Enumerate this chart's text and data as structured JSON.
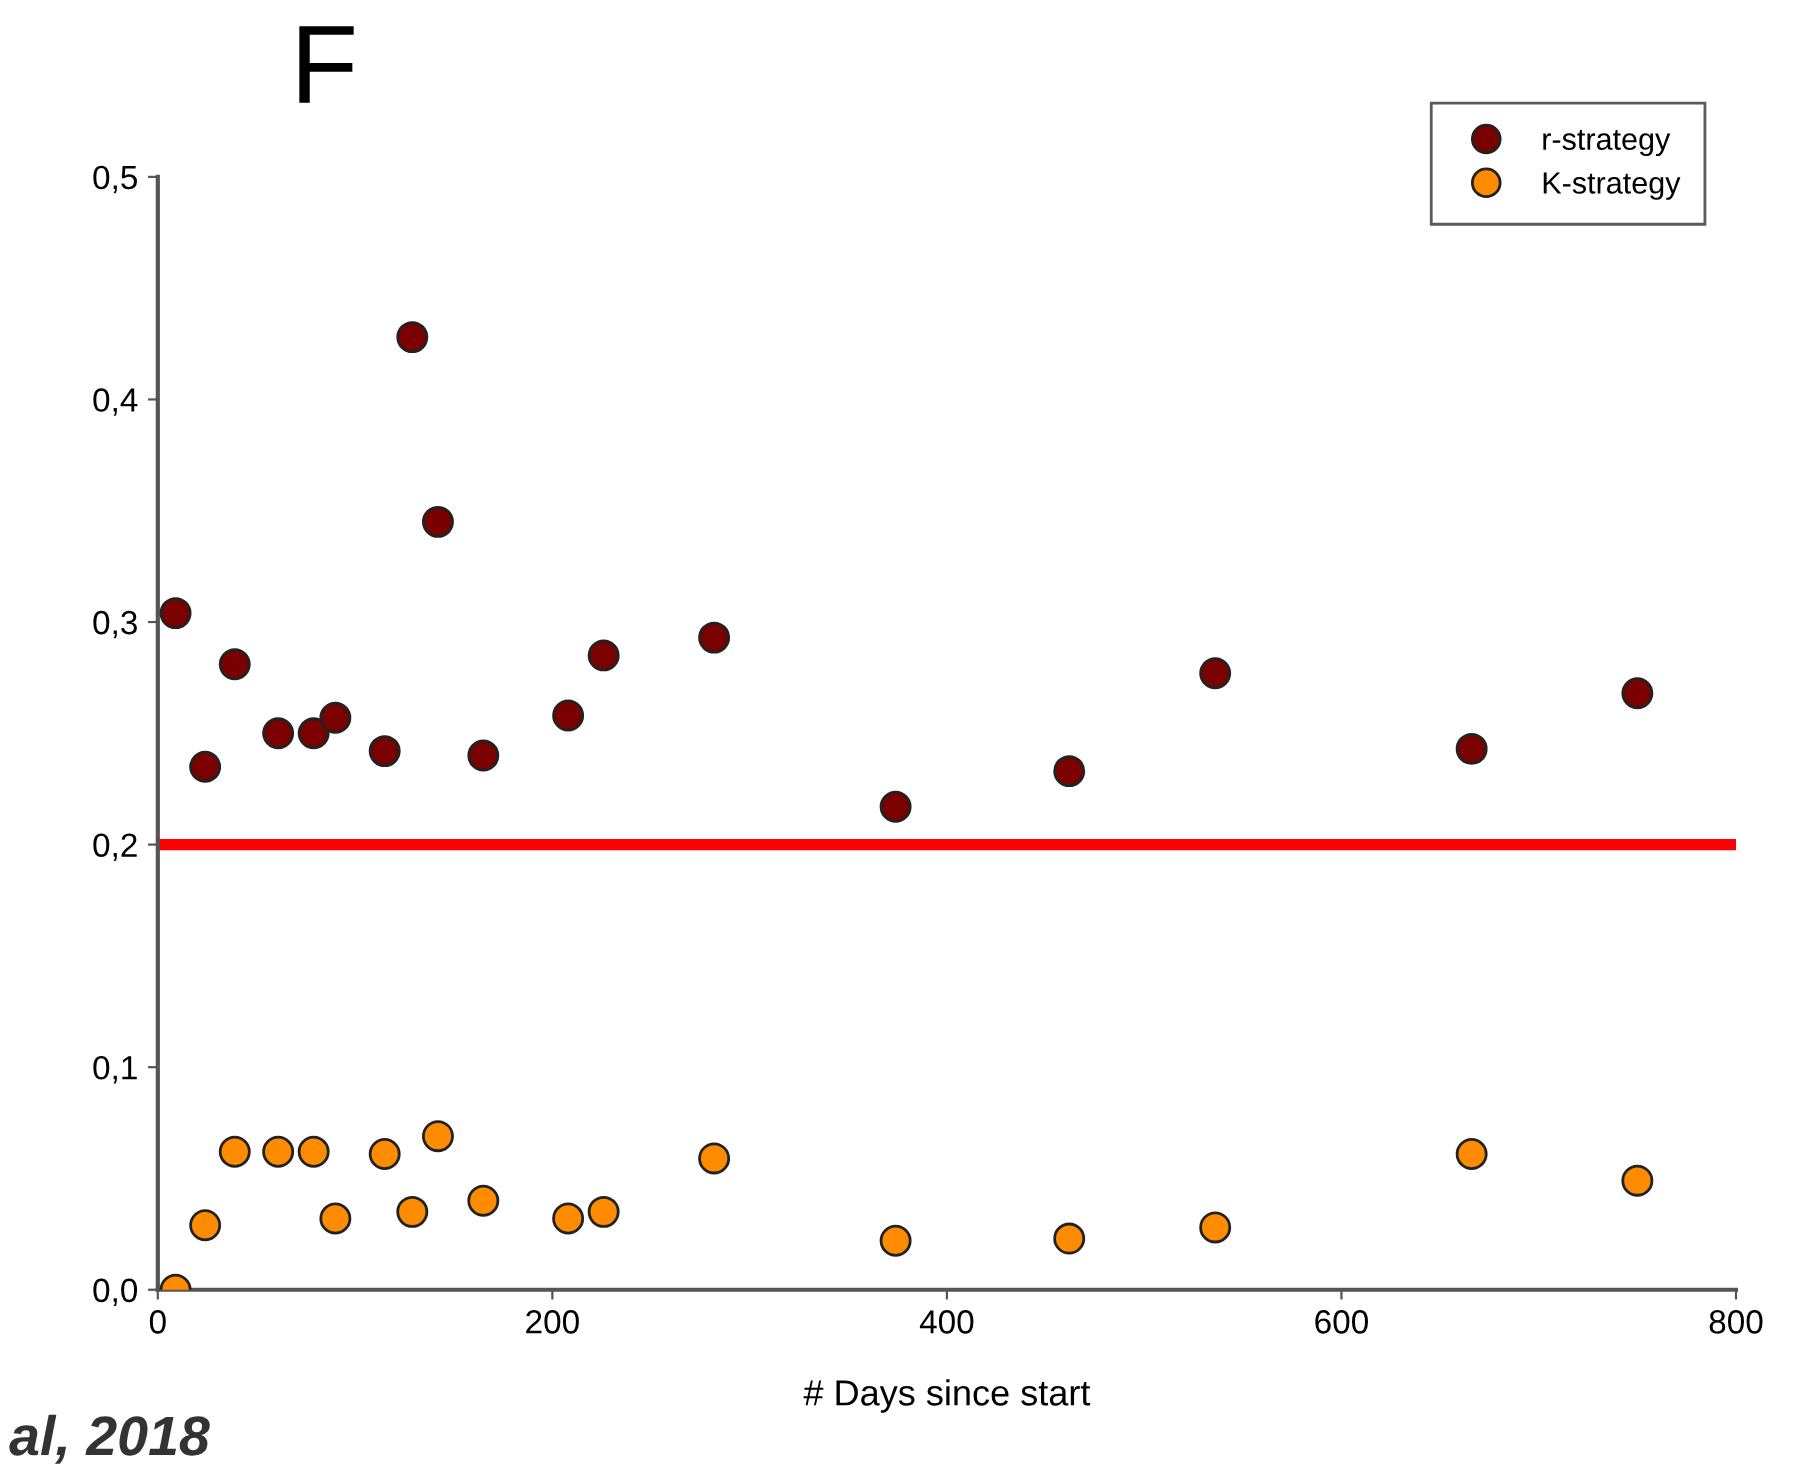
{
  "chart_data": {
    "type": "scatter",
    "title": "F",
    "xlabel": "# Days since start",
    "x": [
      9,
      24,
      39,
      61,
      79,
      90,
      115,
      129,
      142,
      165,
      208,
      226,
      282,
      374,
      462,
      536,
      666,
      750
    ],
    "series": [
      {
        "name": "r-strategy",
        "color": "#7b0000",
        "values": [
          0.304,
          0.235,
          0.281,
          0.25,
          0.25,
          0.257,
          0.242,
          0.428,
          0.345,
          0.24,
          0.258,
          0.285,
          0.293,
          0.217,
          0.233,
          0.277,
          0.243,
          0.268
        ]
      },
      {
        "name": "K-strategy",
        "color": "#ff8c00",
        "values": [
          0.0,
          0.029,
          0.062,
          0.062,
          0.062,
          0.032,
          0.061,
          0.035,
          0.069,
          0.04,
          0.032,
          0.035,
          0.059,
          0.022,
          0.023,
          0.028,
          0.061,
          0.049
        ]
      }
    ],
    "xlim": [
      0,
      800
    ],
    "xticks": [
      0,
      200,
      400,
      600,
      800
    ],
    "ylim": [
      0,
      0.5
    ],
    "yticks": [
      {
        "value": 0,
        "label": "0,0"
      },
      {
        "value": 0.1,
        "label": "0,1"
      },
      {
        "value": 0.2,
        "label": "0,2"
      },
      {
        "value": 0.3,
        "label": "0,3"
      },
      {
        "value": 0.4,
        "label": "0,4"
      },
      {
        "value": 0.5,
        "label": "0,5"
      }
    ],
    "ref_lines": [
      {
        "axis": "y",
        "value": 0.2,
        "color": "#ff0000",
        "line_style": "solid"
      }
    ],
    "marker": "circle",
    "grid": false,
    "legend": "top right",
    "annotations": [
      "al, 2018"
    ]
  }
}
